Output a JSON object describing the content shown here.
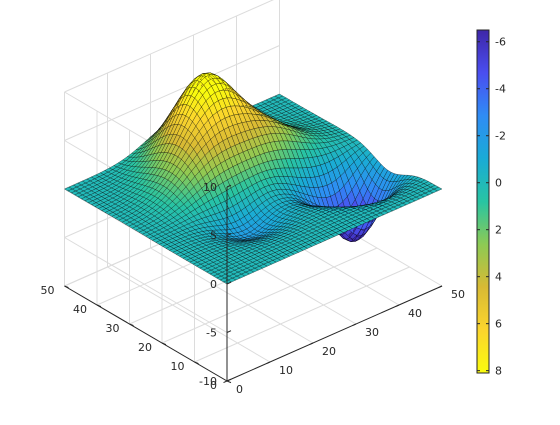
{
  "chart_data": {
    "type": "surface",
    "title": "",
    "xlabel": "",
    "ylabel": "",
    "zlabel": "",
    "grid": true,
    "grid_size": 49,
    "xlim": [
      0,
      50
    ],
    "ylim": [
      0,
      50
    ],
    "zlim": [
      -10,
      10
    ],
    "x_ticks": [
      "0",
      "10",
      "20",
      "30",
      "40",
      "50"
    ],
    "y_ticks": [
      "0",
      "10",
      "20",
      "30",
      "40",
      "50"
    ],
    "z_ticks": [
      "-10",
      "-5",
      "0",
      "5",
      "10"
    ],
    "surface_peaks": [
      {
        "x": 25,
        "y": 40,
        "height": 8.1,
        "width": 6
      },
      {
        "x": 34,
        "y": 30,
        "height": 3.5,
        "width": 6
      },
      {
        "x": 18,
        "y": 32,
        "height": 3.0,
        "width": 6
      }
    ],
    "surface_troughs": [
      {
        "x": 42,
        "y": 16,
        "height": -6.5,
        "width": 4.5
      },
      {
        "x": 35,
        "y": 22,
        "height": -2.5,
        "width": 5
      },
      {
        "x": 18,
        "y": 18,
        "height": -2.0,
        "width": 5
      }
    ],
    "colormap": [
      "#3e26a8",
      "#4a4ef0",
      "#2f8cf5",
      "#1aabd6",
      "#28c4a3",
      "#8dca54",
      "#d8ba34",
      "#fbd52d",
      "#f9fb0e"
    ],
    "colorbar": {
      "ticks": [
        "-6",
        "-4",
        "-2",
        "0",
        "2",
        "4",
        "6",
        "8"
      ],
      "range": [
        -6.5,
        8.1
      ],
      "direction": "reversed"
    }
  }
}
